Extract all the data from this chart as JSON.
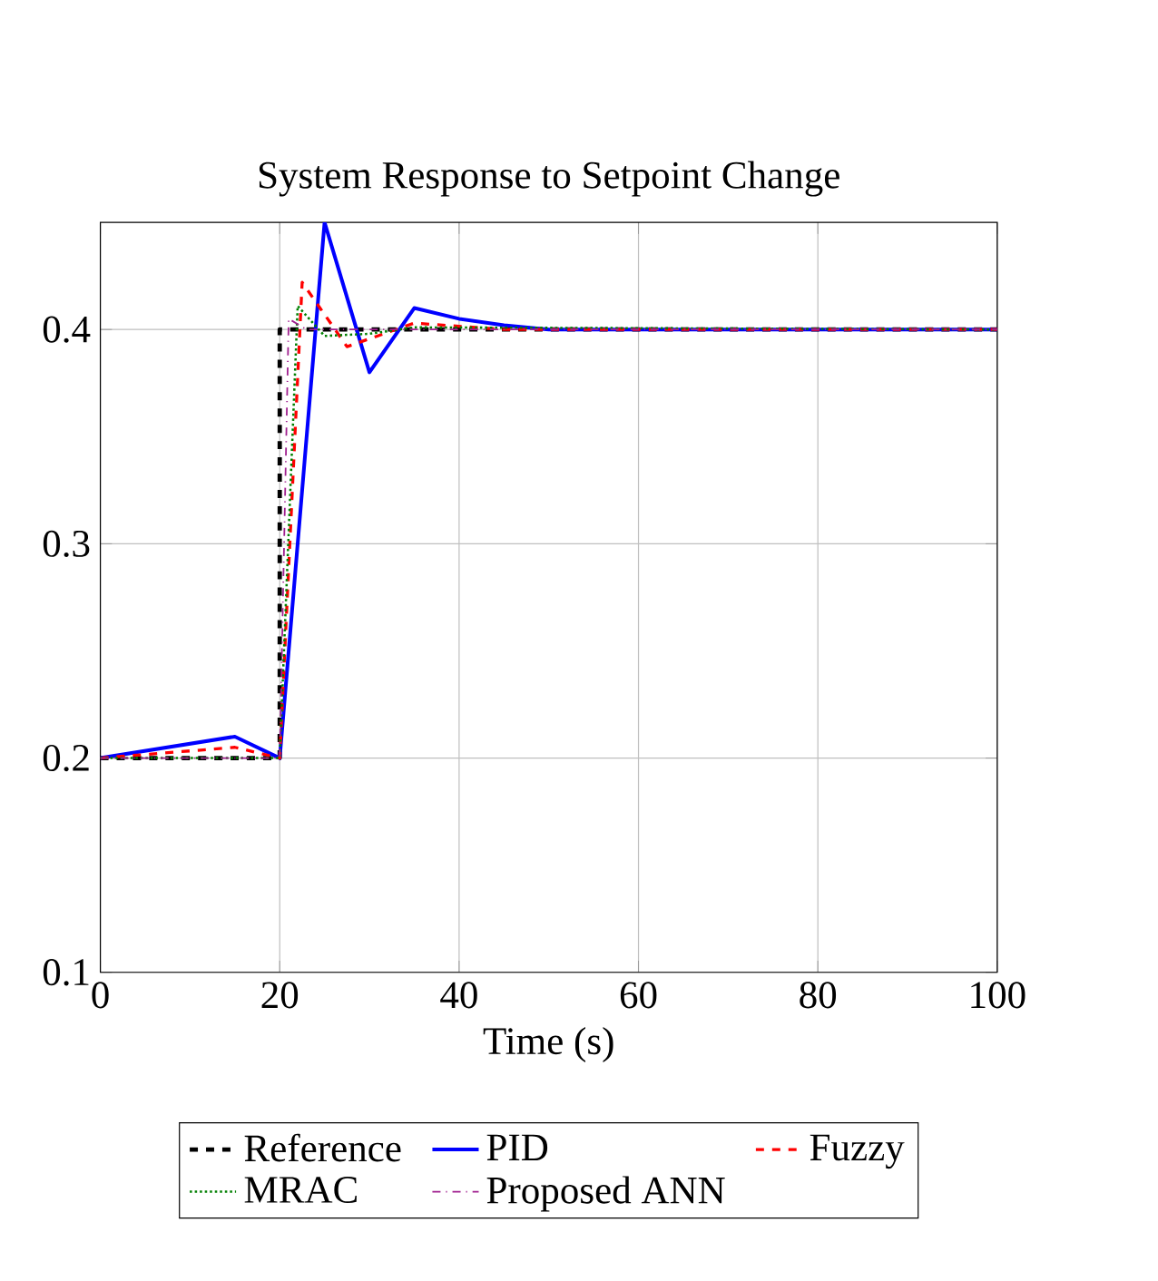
{
  "chart_data": {
    "type": "line",
    "title": "System Response to Setpoint Change",
    "xlabel": "Time (s)",
    "xlim": [
      0,
      100
    ],
    "ylim": [
      0.1,
      0.45
    ],
    "xticks": [
      0,
      20,
      40,
      60,
      80,
      100
    ],
    "yticks": [
      0.1,
      0.2,
      0.3,
      0.4
    ],
    "grid": true,
    "legend": "bottom",
    "marker": "none",
    "series": [
      {
        "name": "Reference",
        "color": "#000000",
        "line_style": "dashed",
        "x": [
          0,
          20,
          20,
          100
        ],
        "values": [
          0.2,
          0.2,
          0.4,
          0.4
        ]
      },
      {
        "name": "PID",
        "color": "#0000ff",
        "line_style": "solid",
        "x": [
          0,
          15,
          20,
          25,
          30,
          35,
          40,
          45,
          50,
          100
        ],
        "values": [
          0.2,
          0.21,
          0.2,
          0.45,
          0.38,
          0.41,
          0.405,
          0.402,
          0.4,
          0.4
        ]
      },
      {
        "name": "Fuzzy",
        "color": "#ff0000",
        "line_style": "dashed",
        "x": [
          0,
          15,
          20,
          22.5,
          27.5,
          35,
          45,
          100
        ],
        "values": [
          0.2,
          0.205,
          0.2,
          0.422,
          0.392,
          0.403,
          0.4,
          0.4
        ]
      },
      {
        "name": "MRAC",
        "color": "#008000",
        "line_style": "dotted",
        "x": [
          0,
          20,
          22,
          25,
          30,
          35,
          100
        ],
        "values": [
          0.2,
          0.2,
          0.411,
          0.397,
          0.398,
          0.401,
          0.4
        ]
      },
      {
        "name": "Proposed ANN",
        "color": "#a0208f",
        "line_style": "dashdotted",
        "x": [
          0,
          20,
          21,
          23,
          100
        ],
        "values": [
          0.2,
          0.2,
          0.405,
          0.4,
          0.4
        ]
      }
    ]
  }
}
